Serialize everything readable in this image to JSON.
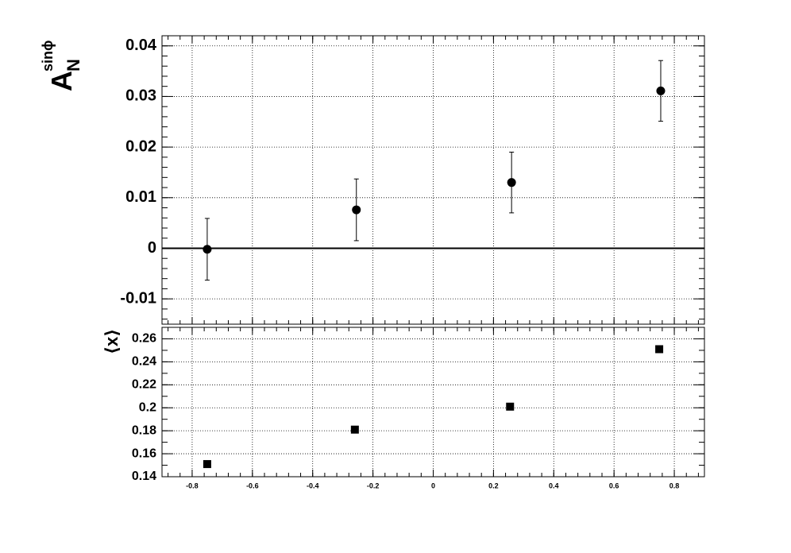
{
  "chart_data": [
    {
      "type": "scatter",
      "ylabel": {
        "main": "A",
        "sub": "N",
        "sup": "sinϕ"
      },
      "x": [
        -0.75,
        -0.255,
        0.26,
        0.755
      ],
      "values": [
        -0.0002,
        0.0076,
        0.013,
        0.0311
      ],
      "errors": [
        0.0061,
        0.0061,
        0.006,
        0.006
      ],
      "color": "#000000",
      "xlim": [
        -0.9,
        0.9
      ],
      "xticks": [
        -0.8,
        -0.6,
        -0.4,
        -0.2,
        0,
        0.2,
        0.4,
        0.6,
        0.8
      ],
      "ylim": [
        -0.015,
        0.042
      ],
      "yticks": [
        -0.01,
        0,
        0.01,
        0.02,
        0.03,
        0.04
      ],
      "grid": true,
      "zero_line": true
    },
    {
      "type": "scatter",
      "ylabel": "⟨x⟩",
      "x": [
        -0.75,
        -0.26,
        0.255,
        0.75
      ],
      "values": [
        0.151,
        0.181,
        0.201,
        0.251
      ],
      "color": "#000000",
      "xlim": [
        -0.9,
        0.9
      ],
      "xticks": [
        -0.8,
        -0.6,
        -0.4,
        -0.2,
        0,
        0.2,
        0.4,
        0.6,
        0.8
      ],
      "ylim": [
        0.14,
        0.27
      ],
      "yticks": [
        0.14,
        0.16,
        0.18,
        0.2,
        0.22,
        0.24,
        0.26
      ],
      "grid": true,
      "show_xtick_labels": true
    }
  ]
}
